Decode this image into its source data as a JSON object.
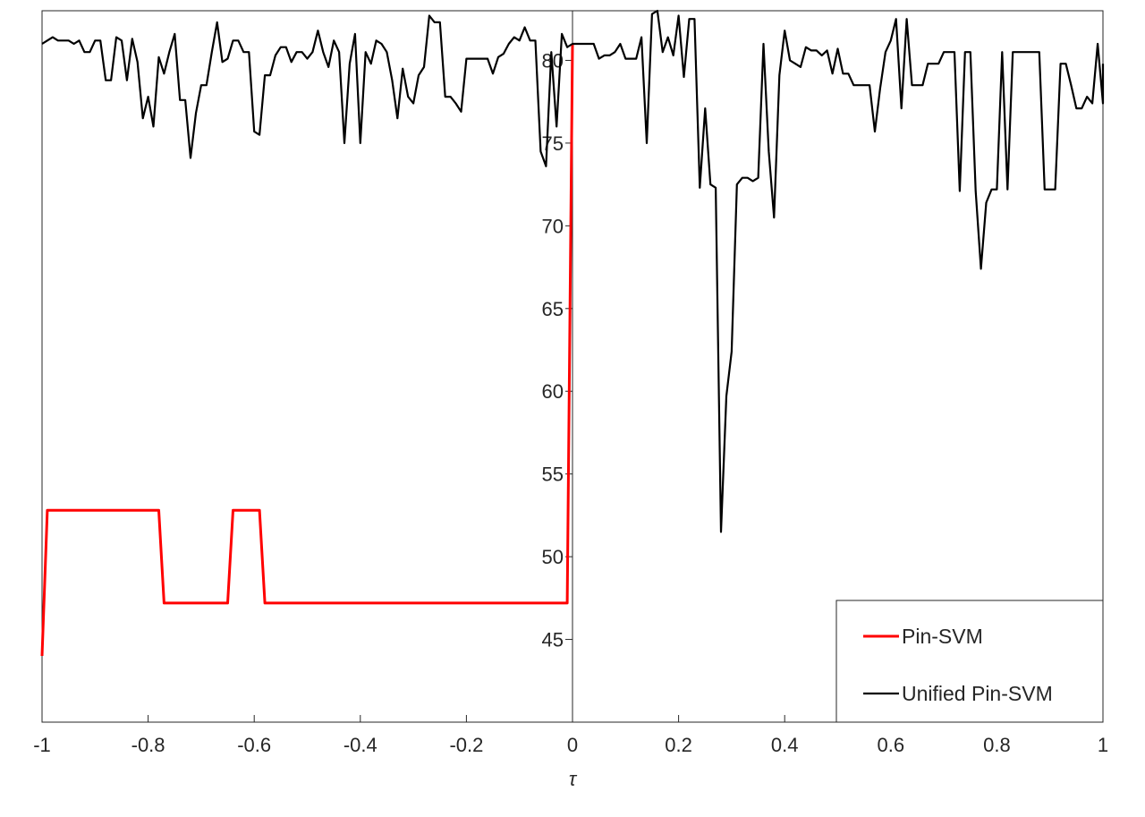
{
  "chart_data": {
    "type": "line",
    "title": "",
    "xlabel": "τ",
    "ylabel": "",
    "xlim": [
      -1,
      1
    ],
    "ylim": [
      40,
      83
    ],
    "x_ticks": [
      -1,
      -0.8,
      -0.6,
      -0.4,
      -0.2,
      0,
      0.2,
      0.4,
      0.6,
      0.8,
      1
    ],
    "x_tick_labels": [
      "-1",
      "-0.8",
      "-0.6",
      "-0.4",
      "-0.2",
      "0",
      "0.2",
      "0.4",
      "0.6",
      "0.8",
      "1"
    ],
    "y_ticks": [
      45,
      50,
      55,
      60,
      65,
      70,
      75,
      80
    ],
    "y_tick_labels": [
      "45",
      "50",
      "55",
      "60",
      "65",
      "70",
      "75",
      "80"
    ],
    "y_axis_location": "origin",
    "grid": false,
    "legend_location": "bottom-right",
    "series": [
      {
        "name": "Pin-SVM",
        "color": "#ff0000",
        "points": [
          [
            -1.0,
            44.0
          ],
          [
            -0.99,
            52.8
          ],
          [
            -0.78,
            52.8
          ],
          [
            -0.77,
            47.2
          ],
          [
            -0.65,
            47.2
          ],
          [
            -0.64,
            52.8
          ],
          [
            -0.59,
            52.8
          ],
          [
            -0.58,
            47.2
          ],
          [
            -0.01,
            47.2
          ],
          [
            0.0,
            81.0
          ]
        ]
      },
      {
        "name": "Unified Pin-SVM",
        "color": "#000000",
        "points": [
          [
            -1.0,
            81.0
          ],
          [
            -0.99,
            81.2
          ],
          [
            -0.98,
            81.4
          ],
          [
            -0.97,
            81.2
          ],
          [
            -0.96,
            81.2
          ],
          [
            -0.95,
            81.2
          ],
          [
            -0.94,
            81.0
          ],
          [
            -0.93,
            81.2
          ],
          [
            -0.92,
            80.5
          ],
          [
            -0.91,
            80.5
          ],
          [
            -0.9,
            81.2
          ],
          [
            -0.89,
            81.2
          ],
          [
            -0.88,
            78.8
          ],
          [
            -0.87,
            78.8
          ],
          [
            -0.86,
            81.4
          ],
          [
            -0.85,
            81.2
          ],
          [
            -0.84,
            78.8
          ],
          [
            -0.83,
            81.3
          ],
          [
            -0.82,
            79.9
          ],
          [
            -0.81,
            76.5
          ],
          [
            -0.8,
            77.8
          ],
          [
            -0.79,
            76.0
          ],
          [
            -0.78,
            80.2
          ],
          [
            -0.77,
            79.2
          ],
          [
            -0.76,
            80.5
          ],
          [
            -0.75,
            81.6
          ],
          [
            -0.74,
            77.6
          ],
          [
            -0.73,
            77.6
          ],
          [
            -0.72,
            74.1
          ],
          [
            -0.71,
            76.8
          ],
          [
            -0.7,
            78.5
          ],
          [
            -0.69,
            78.5
          ],
          [
            -0.68,
            80.5
          ],
          [
            -0.67,
            82.3
          ],
          [
            -0.66,
            79.9
          ],
          [
            -0.65,
            80.1
          ],
          [
            -0.64,
            81.2
          ],
          [
            -0.63,
            81.2
          ],
          [
            -0.62,
            80.5
          ],
          [
            -0.61,
            80.5
          ],
          [
            -0.6,
            75.7
          ],
          [
            -0.59,
            75.5
          ],
          [
            -0.58,
            79.1
          ],
          [
            -0.57,
            79.1
          ],
          [
            -0.56,
            80.3
          ],
          [
            -0.55,
            80.8
          ],
          [
            -0.54,
            80.8
          ],
          [
            -0.53,
            79.9
          ],
          [
            -0.52,
            80.5
          ],
          [
            -0.51,
            80.5
          ],
          [
            -0.5,
            80.1
          ],
          [
            -0.49,
            80.5
          ],
          [
            -0.48,
            81.8
          ],
          [
            -0.47,
            80.5
          ],
          [
            -0.46,
            79.6
          ],
          [
            -0.45,
            81.2
          ],
          [
            -0.44,
            80.5
          ],
          [
            -0.43,
            75.0
          ],
          [
            -0.42,
            79.8
          ],
          [
            -0.41,
            81.6
          ],
          [
            -0.4,
            75.0
          ],
          [
            -0.39,
            80.5
          ],
          [
            -0.38,
            79.8
          ],
          [
            -0.37,
            81.2
          ],
          [
            -0.36,
            81.0
          ],
          [
            -0.35,
            80.5
          ],
          [
            -0.34,
            78.8
          ],
          [
            -0.33,
            76.5
          ],
          [
            -0.32,
            79.5
          ],
          [
            -0.31,
            77.8
          ],
          [
            -0.3,
            77.4
          ],
          [
            -0.29,
            79.1
          ],
          [
            -0.28,
            79.6
          ],
          [
            -0.27,
            82.7
          ],
          [
            -0.26,
            82.3
          ],
          [
            -0.25,
            82.3
          ],
          [
            -0.24,
            77.8
          ],
          [
            -0.23,
            77.8
          ],
          [
            -0.22,
            77.4
          ],
          [
            -0.21,
            76.9
          ],
          [
            -0.2,
            80.1
          ],
          [
            -0.19,
            80.1
          ],
          [
            -0.18,
            80.1
          ],
          [
            -0.17,
            80.1
          ],
          [
            -0.16,
            80.1
          ],
          [
            -0.15,
            79.2
          ],
          [
            -0.14,
            80.2
          ],
          [
            -0.13,
            80.4
          ],
          [
            -0.12,
            81.0
          ],
          [
            -0.11,
            81.4
          ],
          [
            -0.1,
            81.2
          ],
          [
            -0.09,
            82.0
          ],
          [
            -0.08,
            81.2
          ],
          [
            -0.07,
            81.2
          ],
          [
            -0.06,
            74.5
          ],
          [
            -0.05,
            73.6
          ],
          [
            -0.04,
            80.5
          ],
          [
            -0.03,
            76.0
          ],
          [
            -0.02,
            81.6
          ],
          [
            -0.01,
            80.8
          ],
          [
            0.0,
            81.0
          ],
          [
            0.01,
            81.0
          ],
          [
            0.02,
            81.0
          ],
          [
            0.03,
            81.0
          ],
          [
            0.04,
            81.0
          ],
          [
            0.05,
            80.1
          ],
          [
            0.06,
            80.3
          ],
          [
            0.07,
            80.3
          ],
          [
            0.08,
            80.5
          ],
          [
            0.09,
            81.0
          ],
          [
            0.1,
            80.1
          ],
          [
            0.11,
            80.1
          ],
          [
            0.12,
            80.1
          ],
          [
            0.13,
            81.4
          ],
          [
            0.14,
            75.0
          ],
          [
            0.15,
            82.8
          ],
          [
            0.16,
            83.0
          ],
          [
            0.17,
            80.5
          ],
          [
            0.18,
            81.4
          ],
          [
            0.19,
            80.3
          ],
          [
            0.2,
            82.7
          ],
          [
            0.21,
            79.0
          ],
          [
            0.22,
            82.5
          ],
          [
            0.23,
            82.5
          ],
          [
            0.24,
            72.3
          ],
          [
            0.25,
            77.1
          ],
          [
            0.26,
            72.5
          ],
          [
            0.27,
            72.3
          ],
          [
            0.28,
            51.5
          ],
          [
            0.29,
            59.7
          ],
          [
            0.3,
            62.4
          ],
          [
            0.31,
            72.5
          ],
          [
            0.32,
            72.9
          ],
          [
            0.33,
            72.9
          ],
          [
            0.34,
            72.7
          ],
          [
            0.35,
            72.9
          ],
          [
            0.36,
            81.0
          ],
          [
            0.37,
            74.5
          ],
          [
            0.38,
            70.5
          ],
          [
            0.39,
            79.1
          ],
          [
            0.4,
            81.8
          ],
          [
            0.41,
            80.0
          ],
          [
            0.42,
            79.8
          ],
          [
            0.43,
            79.6
          ],
          [
            0.44,
            80.8
          ],
          [
            0.45,
            80.6
          ],
          [
            0.46,
            80.6
          ],
          [
            0.47,
            80.3
          ],
          [
            0.48,
            80.6
          ],
          [
            0.49,
            79.2
          ],
          [
            0.5,
            80.7
          ],
          [
            0.51,
            79.2
          ],
          [
            0.52,
            79.2
          ],
          [
            0.53,
            78.5
          ],
          [
            0.54,
            78.5
          ],
          [
            0.55,
            78.5
          ],
          [
            0.56,
            78.5
          ],
          [
            0.57,
            75.7
          ],
          [
            0.58,
            78.3
          ],
          [
            0.59,
            80.5
          ],
          [
            0.6,
            81.2
          ],
          [
            0.61,
            82.5
          ],
          [
            0.62,
            77.1
          ],
          [
            0.63,
            82.5
          ],
          [
            0.64,
            78.5
          ],
          [
            0.65,
            78.5
          ],
          [
            0.66,
            78.5
          ],
          [
            0.67,
            79.8
          ],
          [
            0.68,
            79.8
          ],
          [
            0.69,
            79.8
          ],
          [
            0.7,
            80.5
          ],
          [
            0.71,
            80.5
          ],
          [
            0.72,
            80.5
          ],
          [
            0.73,
            72.1
          ],
          [
            0.74,
            80.5
          ],
          [
            0.75,
            80.5
          ],
          [
            0.76,
            72.1
          ],
          [
            0.77,
            67.4
          ],
          [
            0.78,
            71.4
          ],
          [
            0.79,
            72.2
          ],
          [
            0.8,
            72.2
          ],
          [
            0.81,
            80.5
          ],
          [
            0.82,
            72.2
          ],
          [
            0.83,
            80.5
          ],
          [
            0.84,
            80.5
          ],
          [
            0.85,
            80.5
          ],
          [
            0.86,
            80.5
          ],
          [
            0.87,
            80.5
          ],
          [
            0.88,
            80.5
          ],
          [
            0.89,
            72.2
          ],
          [
            0.9,
            72.2
          ],
          [
            0.91,
            72.2
          ],
          [
            0.92,
            79.8
          ],
          [
            0.93,
            79.8
          ],
          [
            0.94,
            78.5
          ],
          [
            0.95,
            77.1
          ],
          [
            0.96,
            77.1
          ],
          [
            0.97,
            77.8
          ],
          [
            0.98,
            77.4
          ],
          [
            0.99,
            81.0
          ],
          [
            1.0,
            77.4
          ],
          [
            1.0,
            79.8
          ]
        ]
      }
    ]
  }
}
